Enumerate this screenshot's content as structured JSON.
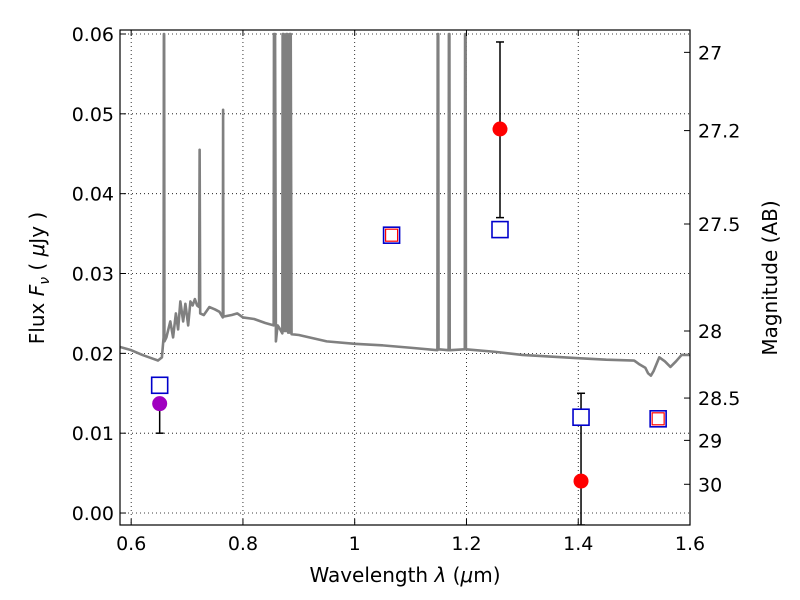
{
  "chart_data": {
    "type": "scatter",
    "title": "",
    "xlabel_parts": [
      "Wavelength  ",
      "λ",
      " (",
      "μ",
      "m)"
    ],
    "ylabel_parts": [
      "Flux  ",
      "F",
      "ν",
      "  ( ",
      "μ",
      "Jy )"
    ],
    "y2label": "Magnitude (AB)",
    "xlim": [
      0.58,
      1.6
    ],
    "ylim": [
      -0.0015,
      0.0605
    ],
    "grid": true,
    "x_ticks": [
      {
        "value": 0.6,
        "label": "0.6"
      },
      {
        "value": 0.8,
        "label": "0.8"
      },
      {
        "value": 1.0,
        "label": "1"
      },
      {
        "value": 1.2,
        "label": "1.2"
      },
      {
        "value": 1.4,
        "label": "1.4"
      },
      {
        "value": 1.6,
        "label": "1.6"
      }
    ],
    "y_ticks": [
      {
        "value": 0.0,
        "label": "0.00"
      },
      {
        "value": 0.01,
        "label": "0.01"
      },
      {
        "value": 0.02,
        "label": "0.02"
      },
      {
        "value": 0.03,
        "label": "0.03"
      },
      {
        "value": 0.04,
        "label": "0.04"
      },
      {
        "value": 0.05,
        "label": "0.05"
      },
      {
        "value": 0.06,
        "label": "0.06"
      }
    ],
    "y2_ticks": [
      {
        "label": "27",
        "flux": 0.0577
      },
      {
        "label": "27.2",
        "flux": 0.0479
      },
      {
        "label": "27.5",
        "flux": 0.0362
      },
      {
        "label": "28",
        "flux": 0.0228
      },
      {
        "label": "28.5",
        "flux": 0.0144
      },
      {
        "label": "29",
        "flux": 0.0091
      },
      {
        "label": "30",
        "flux": 0.0036
      }
    ],
    "spectrum": {
      "name": "model spectrum",
      "color": "#808080",
      "points": [
        [
          0.58,
          0.0208
        ],
        [
          0.6,
          0.0204
        ],
        [
          0.62,
          0.0198
        ],
        [
          0.64,
          0.0193
        ],
        [
          0.648,
          0.0191
        ],
        [
          0.655,
          0.0195
        ],
        [
          0.658,
          0.022
        ],
        [
          0.6585,
          0.06
        ],
        [
          0.659,
          0.06
        ],
        [
          0.6595,
          0.0215
        ],
        [
          0.663,
          0.022
        ],
        [
          0.67,
          0.024
        ],
        [
          0.675,
          0.022
        ],
        [
          0.68,
          0.025
        ],
        [
          0.684,
          0.023
        ],
        [
          0.688,
          0.0265
        ],
        [
          0.693,
          0.024
        ],
        [
          0.697,
          0.0262
        ],
        [
          0.702,
          0.0235
        ],
        [
          0.706,
          0.0265
        ],
        [
          0.71,
          0.026
        ],
        [
          0.714,
          0.0268
        ],
        [
          0.718,
          0.026
        ],
        [
          0.7215,
          0.0258
        ],
        [
          0.7225,
          0.0455
        ],
        [
          0.7235,
          0.025
        ],
        [
          0.73,
          0.0248
        ],
        [
          0.74,
          0.0258
        ],
        [
          0.75,
          0.0255
        ],
        [
          0.758,
          0.0252
        ],
        [
          0.764,
          0.0245
        ],
        [
          0.7645,
          0.0505
        ],
        [
          0.765,
          0.0246
        ],
        [
          0.78,
          0.0248
        ],
        [
          0.79,
          0.025
        ],
        [
          0.8,
          0.0245
        ],
        [
          0.82,
          0.0243
        ],
        [
          0.84,
          0.0238
        ],
        [
          0.855,
          0.0235
        ],
        [
          0.8555,
          0.06
        ],
        [
          0.8575,
          0.06
        ],
        [
          0.859,
          0.0215
        ],
        [
          0.862,
          0.0235
        ],
        [
          0.865,
          0.0232
        ],
        [
          0.8705,
          0.0225
        ],
        [
          0.871,
          0.06
        ],
        [
          0.873,
          0.06
        ],
        [
          0.8745,
          0.0228
        ],
        [
          0.877,
          0.0228
        ],
        [
          0.8775,
          0.06
        ],
        [
          0.8795,
          0.06
        ],
        [
          0.881,
          0.0226
        ],
        [
          0.883,
          0.0226
        ],
        [
          0.8835,
          0.06
        ],
        [
          0.8855,
          0.06
        ],
        [
          0.887,
          0.0224
        ],
        [
          0.9,
          0.0223
        ],
        [
          0.95,
          0.0215
        ],
        [
          1.0,
          0.0212
        ],
        [
          1.05,
          0.021
        ],
        [
          1.1,
          0.0207
        ],
        [
          1.148,
          0.0204
        ],
        [
          1.1485,
          0.06
        ],
        [
          1.1495,
          0.06
        ],
        [
          1.15,
          0.0205
        ],
        [
          1.168,
          0.0204
        ],
        [
          1.1685,
          0.06
        ],
        [
          1.1695,
          0.06
        ],
        [
          1.17,
          0.0204
        ],
        [
          1.197,
          0.0205
        ],
        [
          1.1975,
          0.06
        ],
        [
          1.1985,
          0.06
        ],
        [
          1.199,
          0.0205
        ],
        [
          1.25,
          0.0202
        ],
        [
          1.3,
          0.0198
        ],
        [
          1.35,
          0.0196
        ],
        [
          1.4,
          0.0194
        ],
        [
          1.45,
          0.0192
        ],
        [
          1.5,
          0.0191
        ],
        [
          1.51,
          0.0186
        ],
        [
          1.52,
          0.0182
        ],
        [
          1.525,
          0.0175
        ],
        [
          1.53,
          0.0172
        ],
        [
          1.535,
          0.0178
        ],
        [
          1.545,
          0.0195
        ],
        [
          1.555,
          0.019
        ],
        [
          1.565,
          0.0183
        ],
        [
          1.575,
          0.019
        ],
        [
          1.585,
          0.0198
        ],
        [
          1.6,
          0.0198
        ]
      ]
    },
    "squares": [
      {
        "name": "square-0.65",
        "x": 0.651,
        "y": 0.016,
        "stroke": "#0000cc",
        "inner": false
      },
      {
        "name": "square-1.065",
        "x": 1.066,
        "y": 0.0348,
        "stroke": "#0000cc",
        "inner": true
      },
      {
        "name": "square-1.26",
        "x": 1.26,
        "y": 0.0355,
        "stroke": "#0000cc",
        "inner": false
      },
      {
        "name": "square-1.405",
        "x": 1.405,
        "y": 0.012,
        "stroke": "#0000cc",
        "inner": false
      },
      {
        "name": "square-1.54",
        "x": 1.543,
        "y": 0.0118,
        "stroke": "#0000cc",
        "inner": true
      }
    ],
    "circles": [
      {
        "name": "circle-0.65",
        "x": 0.651,
        "y": 0.0137,
        "color": "#a000c0"
      },
      {
        "name": "circle-1.26",
        "x": 1.26,
        "y": 0.0481,
        "color": "#ff0000"
      },
      {
        "name": "circle-1.405",
        "x": 1.405,
        "y": 0.004,
        "color": "#ff0000"
      }
    ],
    "errorbars": [
      {
        "name": "errorbar-0.65",
        "x": 0.651,
        "low": 0.01,
        "high": 0.0137
      },
      {
        "name": "errorbar-1.26",
        "x": 1.26,
        "low": 0.037,
        "high": 0.059
      },
      {
        "name": "errorbar-1.405",
        "x": 1.405,
        "low": -0.0015,
        "high": 0.015
      }
    ]
  }
}
